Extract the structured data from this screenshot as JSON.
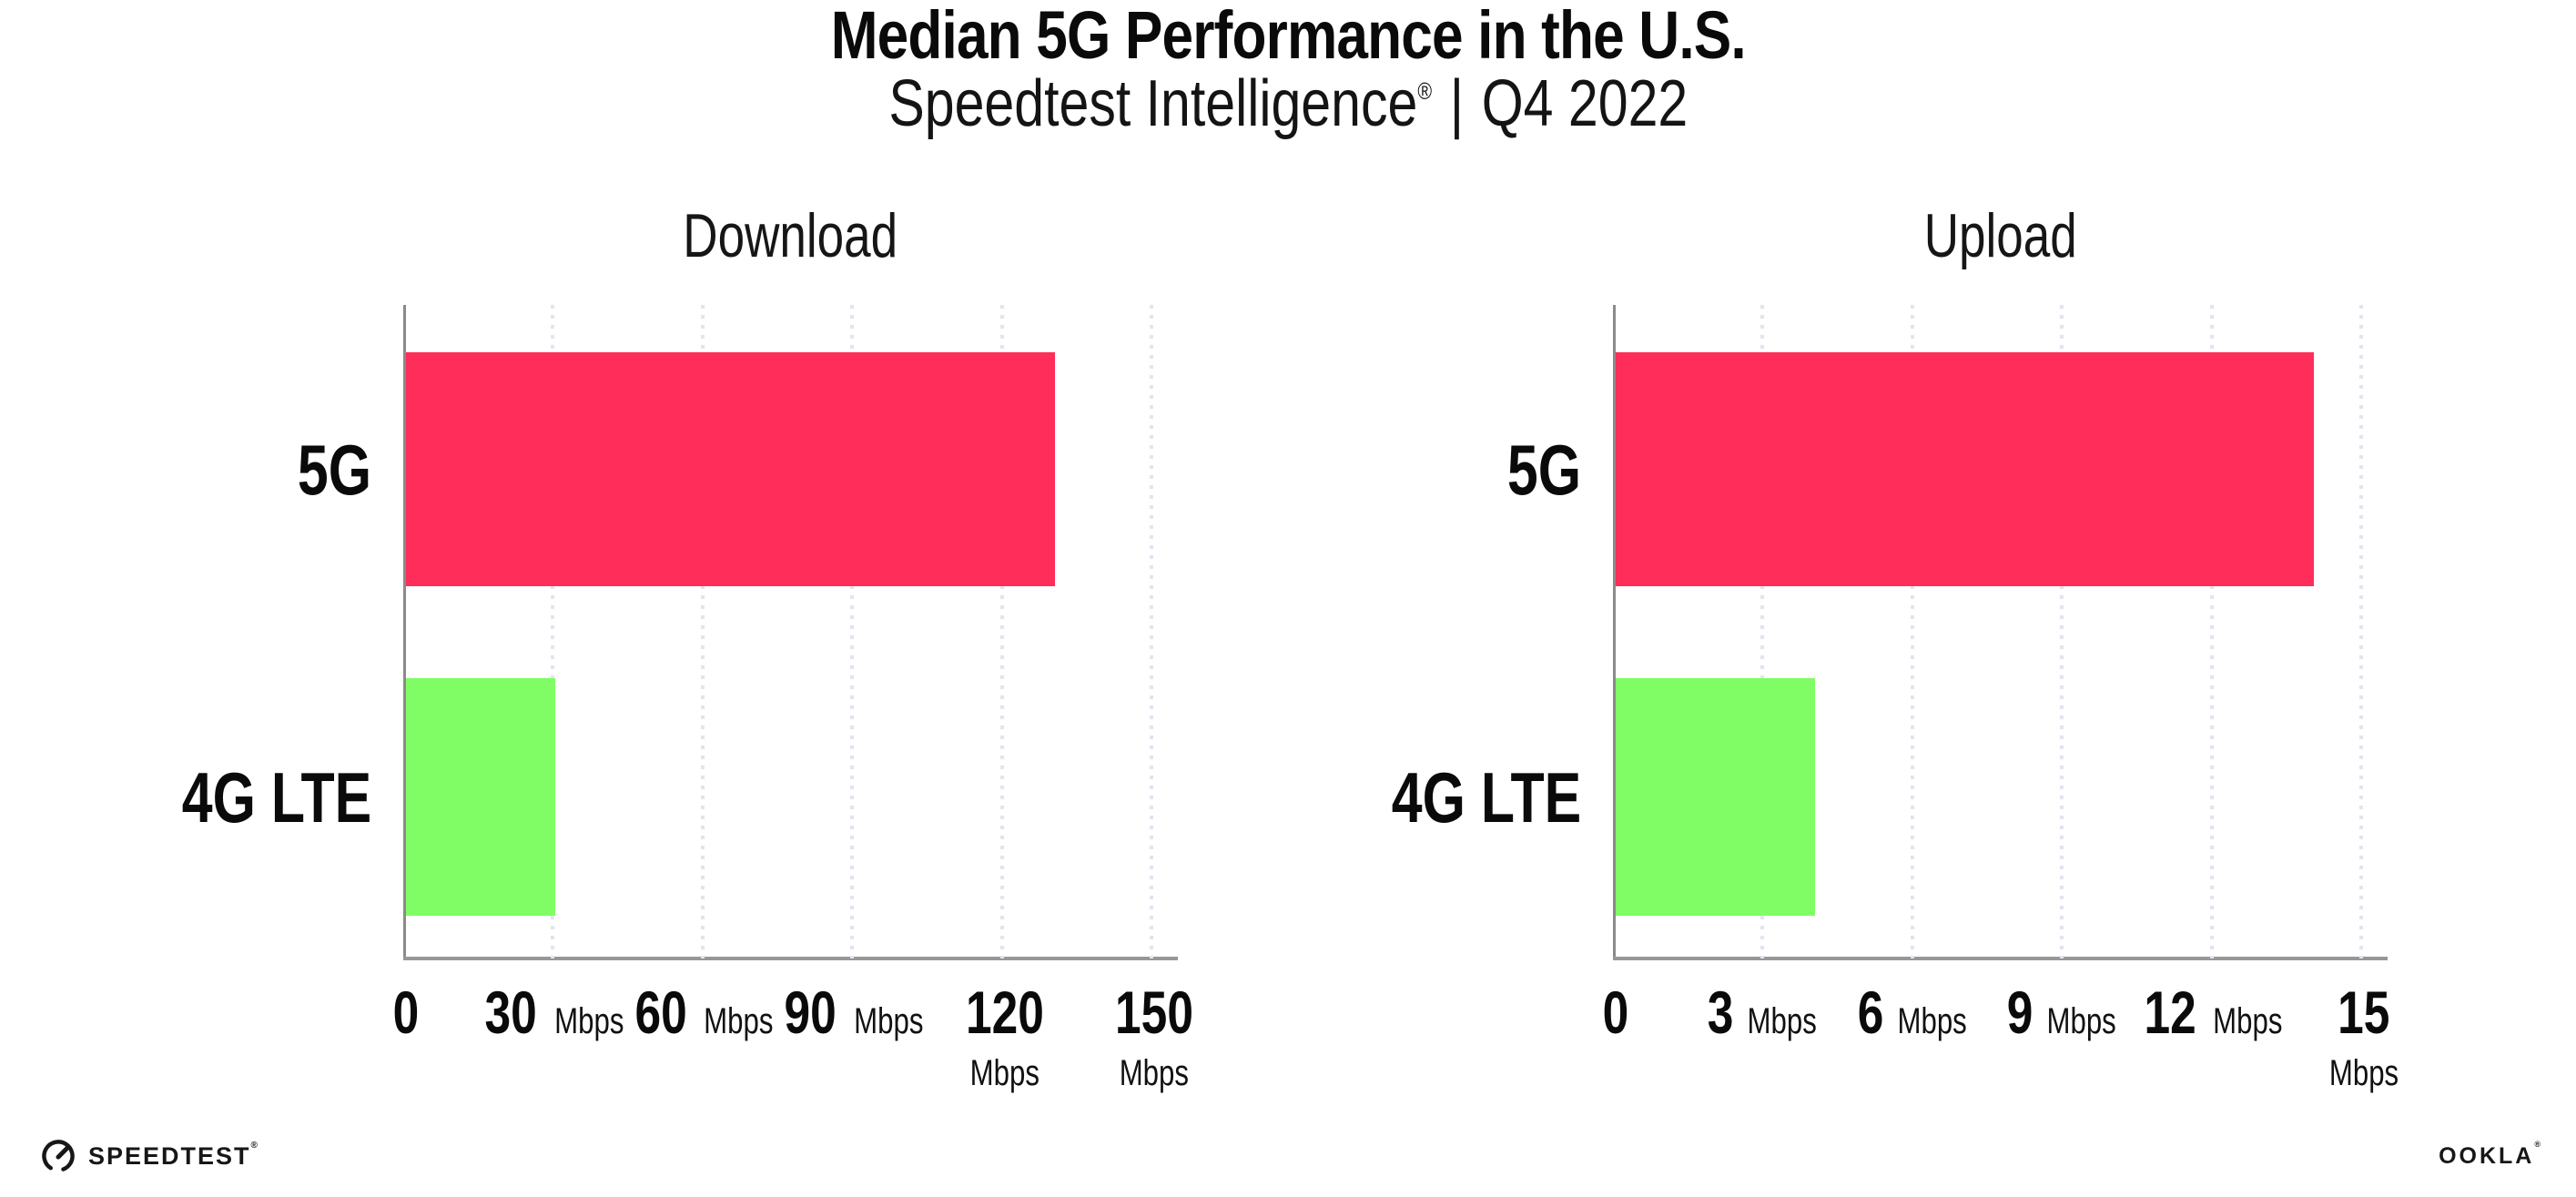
{
  "header": {
    "title": "Median 5G Performance in the U.S.",
    "subtitle_brand": "Speedtest Intelligence",
    "subtitle_reg": "®",
    "subtitle_divider": "|",
    "subtitle_period": "Q4 2022"
  },
  "footer": {
    "speedtest_label": "SPEEDTEST",
    "speedtest_reg": "®",
    "ookla_label": "OOKLA",
    "ookla_reg": "®"
  },
  "colors": {
    "bar_5g": "#ff2d59",
    "bar_4g_lte": "#80fd64",
    "gridline": "#e4e3ef",
    "axis": "#979797",
    "text": "#0a0a0a"
  },
  "chart_data": [
    {
      "type": "bar",
      "orientation": "horizontal",
      "title": "Download",
      "categories": [
        "5G",
        "4G LTE"
      ],
      "values": [
        130,
        30
      ],
      "unit": "Mbps",
      "xticks": [
        0,
        30,
        60,
        90,
        120,
        150
      ],
      "tick_unit_label": "Mbps",
      "xlim": [
        0,
        154.7
      ],
      "grid": "dotted vertical gridlines at each tick",
      "legend_position": "none",
      "bar_colors": [
        "#ff2d59",
        "#80fd64"
      ]
    },
    {
      "type": "bar",
      "orientation": "horizontal",
      "title": "Upload",
      "categories": [
        "5G",
        "4G LTE"
      ],
      "values": [
        14,
        4
      ],
      "unit": "Mbps",
      "xticks": [
        0,
        3,
        6,
        9,
        12,
        15
      ],
      "tick_unit_label": "Mbps",
      "xlim": [
        0,
        15.47
      ],
      "grid": "dotted vertical gridlines at each tick",
      "legend_position": "none",
      "bar_colors": [
        "#ff2d59",
        "#80fd64"
      ]
    }
  ]
}
